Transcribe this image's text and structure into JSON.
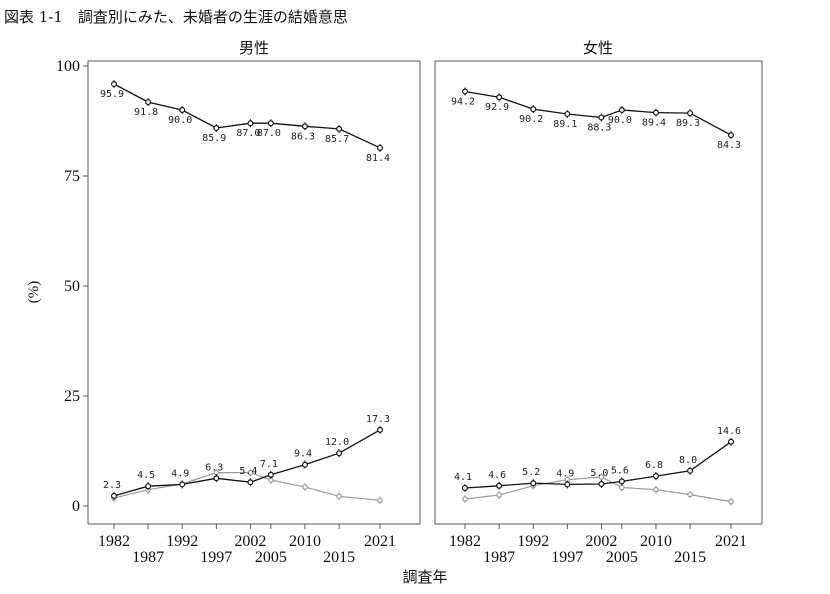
{
  "figure_title": "図表 1-1　調査別にみた、未婚者の生涯の結婚意思",
  "x_axis_label": "調査年",
  "y_axis_label": "(%)",
  "chart_data": [
    {
      "type": "line",
      "panel": "男性",
      "title": "男性",
      "xlabel": "調査年",
      "ylabel": "(%)",
      "x": [
        1982,
        1987,
        1992,
        1997,
        2002,
        2005,
        2010,
        2015,
        2021
      ],
      "x_ticks_top_row": [
        1982,
        1992,
        2002,
        2010,
        2021
      ],
      "x_ticks_bottom_row": [
        1987,
        1997,
        2005,
        2015
      ],
      "ylim": [
        0,
        100
      ],
      "yticks": [
        0,
        25,
        50,
        75,
        100
      ],
      "grid": false,
      "series": [
        {
          "color": "#111111",
          "values": [
            95.9,
            91.8,
            90.0,
            85.9,
            87.0,
            87.0,
            86.3,
            85.7,
            81.4
          ],
          "labels": [
            "95.9",
            "91.8",
            "90.0",
            "85.9",
            "87.0",
            "87.0",
            "86.3",
            "85.7",
            "81.4"
          ]
        },
        {
          "color": "#111111",
          "values": [
            2.3,
            4.5,
            4.9,
            6.3,
            5.4,
            7.1,
            9.4,
            12.0,
            17.3
          ],
          "labels": [
            "2.3",
            "4.5",
            "4.9",
            "6.3",
            "5.4",
            "7.1",
            "9.4",
            "12.0",
            "17.3"
          ]
        },
        {
          "color": "#9a9a9a",
          "values": [
            1.8,
            3.7,
            5.0,
            7.6,
            7.6,
            5.9,
            4.3,
            2.2,
            1.3
          ],
          "labels": []
        }
      ]
    },
    {
      "type": "line",
      "panel": "女性",
      "title": "女性",
      "xlabel": "調査年",
      "ylabel": "(%)",
      "x": [
        1982,
        1987,
        1992,
        1997,
        2002,
        2005,
        2010,
        2015,
        2021
      ],
      "x_ticks_top_row": [
        1982,
        1992,
        2002,
        2010,
        2021
      ],
      "x_ticks_bottom_row": [
        1987,
        1997,
        2005,
        2015
      ],
      "ylim": [
        0,
        100
      ],
      "yticks": [
        0,
        25,
        50,
        75,
        100
      ],
      "grid": false,
      "series": [
        {
          "color": "#111111",
          "values": [
            94.2,
            92.9,
            90.2,
            89.1,
            88.3,
            90.0,
            89.4,
            89.3,
            84.3
          ],
          "labels": [
            "94.2",
            "92.9",
            "90.2",
            "89.1",
            "88.3",
            "90.0",
            "89.4",
            "89.3",
            "84.3"
          ]
        },
        {
          "color": "#111111",
          "values": [
            4.1,
            4.6,
            5.2,
            4.9,
            5.0,
            5.6,
            6.8,
            8.0,
            14.6
          ],
          "labels": [
            "4.1",
            "4.6",
            "5.2",
            "4.9",
            "5.0",
            "5.6",
            "6.8",
            "8.0",
            "14.6"
          ]
        },
        {
          "color": "#9a9a9a",
          "values": [
            1.6,
            2.5,
            4.6,
            6.0,
            6.6,
            4.2,
            3.7,
            2.6,
            1.0
          ],
          "labels": []
        }
      ]
    }
  ]
}
